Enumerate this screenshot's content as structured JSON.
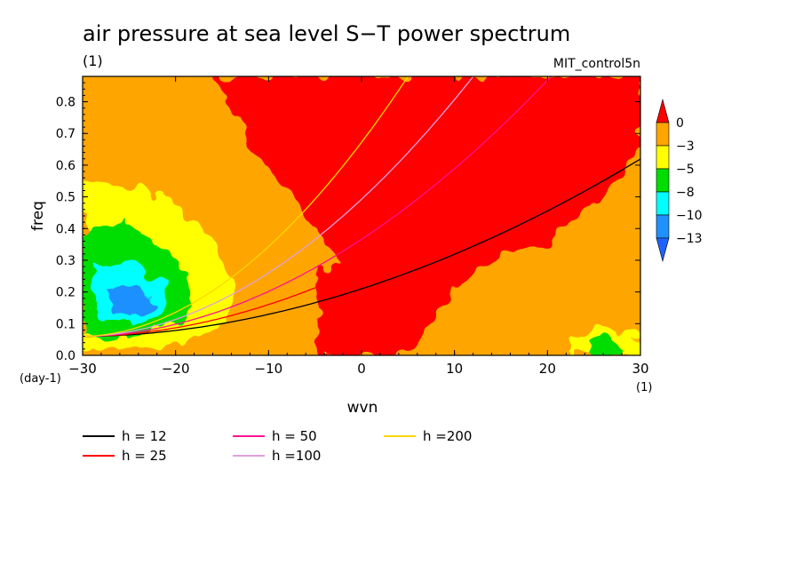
{
  "chart_data": {
    "type": "heatmap",
    "title": "air pressure at sea level S−T power spectrum",
    "units_label": "(1)",
    "dataset_label": "MIT_control5n",
    "xlabel": "wvn",
    "ylabel": "freq",
    "x_units": "(1)",
    "y_units": "(day-1)",
    "xlim": [
      -30,
      30
    ],
    "ylim": [
      0,
      0.88
    ],
    "x_ticks": [
      -30,
      -20,
      -10,
      0,
      10,
      20,
      30
    ],
    "x_tick_labels": [
      "−30",
      "−20",
      "−10",
      "0",
      "10",
      "20",
      "30"
    ],
    "y_ticks": [
      0.0,
      0.1,
      0.2,
      0.3,
      0.4,
      0.5,
      0.6,
      0.7,
      0.8
    ],
    "y_tick_labels": [
      "0.0",
      "0.1",
      "0.2",
      "0.3",
      "0.4",
      "0.5",
      "0.6",
      "0.7",
      "0.8"
    ],
    "colorbar": {
      "bounds": [
        0,
        -3,
        -5,
        -8,
        -10,
        -13
      ],
      "labels": [
        "0",
        "−3",
        "−5",
        "−8",
        "−10",
        "−13"
      ],
      "colors": [
        "#ff0000",
        "#ffa500",
        "#ffff00",
        "#00dd00",
        "#00ffff",
        "#1e90ff",
        "#1e63ff"
      ]
    },
    "field_colors": {
      "red": "#ff0000",
      "orange": "#ffa500",
      "yellow": "#ffff00",
      "green": "#00dd00",
      "cyan": "#00ffff",
      "blue": "#1e90ff"
    },
    "series": [
      {
        "name": "h = 12",
        "color": "#000000",
        "coef": 0.0338,
        "anchor": [
          -30,
          0.06
        ]
      },
      {
        "name": "h = 25",
        "color": "#ff0000",
        "coef": 0.0488,
        "anchor": [
          -30,
          0.06
        ]
      },
      {
        "name": "h = 50",
        "color": "#ff1493",
        "coef": 0.069,
        "anchor": [
          -30,
          0.06
        ]
      },
      {
        "name": "h =100",
        "color": "#dda0dd",
        "coef": 0.0975,
        "anchor": [
          -30,
          0.06
        ]
      },
      {
        "name": "h =200",
        "color": "#ffd700",
        "coef": 0.138,
        "anchor": [
          -30,
          0.06
        ]
      }
    ]
  }
}
